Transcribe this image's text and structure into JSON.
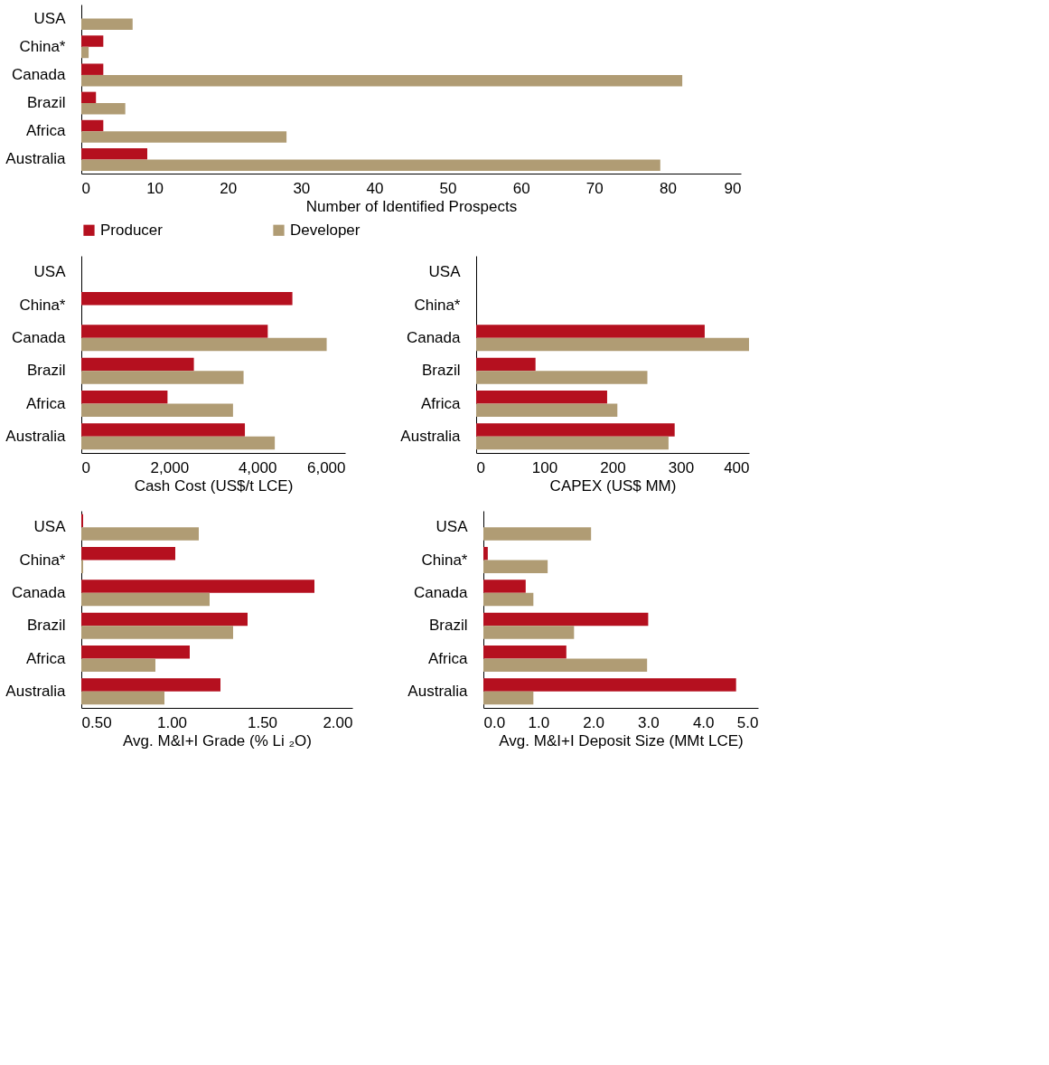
{
  "chart_data": [
    {
      "type": "bar",
      "orientation": "horizontal",
      "xlabel": "Number of Identified Prospects",
      "categories": [
        "USA",
        "China*",
        "Canada",
        "Brazil",
        "Africa",
        "Australia"
      ],
      "xlim": [
        0,
        90
      ],
      "xticks": [
        0,
        10,
        20,
        30,
        40,
        50,
        60,
        70,
        80,
        90
      ],
      "grid": false,
      "legend": "bottom",
      "series": [
        {
          "name": "Producer",
          "color": "#b5101f",
          "values": [
            null,
            3,
            3,
            2,
            3,
            9
          ]
        },
        {
          "name": "Developer",
          "color": "#b09c74",
          "values": [
            7,
            1,
            82,
            6,
            28,
            79
          ]
        }
      ]
    },
    {
      "type": "bar",
      "orientation": "horizontal",
      "xlabel": "Cash Cost (US$/t LCE)",
      "categories": [
        "USA",
        "China*",
        "Canada",
        "Brazil",
        "Africa",
        "Australia"
      ],
      "xlim": [
        0,
        6000
      ],
      "xticks": [
        0,
        {
          "value": 2000,
          "label": "2,000"
        },
        {
          "value": 4000,
          "label": "4,000"
        },
        {
          "value": 6000,
          "label": "6,000"
        }
      ],
      "grid": false,
      "series": [
        {
          "color": "#b5101f",
          "values": [
            null,
            4800,
            4240,
            2560,
            1960,
            3720
          ]
        },
        {
          "color": "#b09c74",
          "values": [
            null,
            null,
            5580,
            3690,
            3450,
            4400
          ]
        }
      ]
    },
    {
      "type": "bar",
      "orientation": "horizontal",
      "xlabel": "CAPEX (US$ MM)",
      "categories": [
        "USA",
        "China*",
        "Canada",
        "Brazil",
        "Africa",
        "Australia"
      ],
      "xlim": [
        0,
        400
      ],
      "xticks": [
        0,
        100,
        200,
        300,
        400
      ],
      "grid": false,
      "series": [
        {
          "color": "#b5101f",
          "values": [
            null,
            null,
            335,
            87,
            192,
            291
          ]
        },
        {
          "color": "#b09c74",
          "values": [
            null,
            null,
            400,
            251,
            207,
            282
          ]
        }
      ]
    },
    {
      "type": "bar",
      "orientation": "horizontal",
      "xlabel": "Avg. M&I+I Grade (% Li ₂O)",
      "categories": [
        "USA",
        "China*",
        "Canada",
        "Brazil",
        "Africa",
        "Australia"
      ],
      "xlim": [
        0.5,
        2.0
      ],
      "xticks": [
        {
          "value": 0.5,
          "label": "0.50"
        },
        {
          "value": 1.0,
          "label": "1.00"
        },
        {
          "value": 1.5,
          "label": "1.50"
        },
        {
          "value": 2.0,
          "label": "2.00"
        }
      ],
      "grid": false,
      "series": [
        {
          "color": "#b5101f",
          "values": [
            0.51,
            1.02,
            1.79,
            1.42,
            1.1,
            1.27
          ]
        },
        {
          "color": "#b09c74",
          "values": [
            1.15,
            0.51,
            1.21,
            1.34,
            0.91,
            0.96
          ]
        }
      ]
    },
    {
      "type": "bar",
      "orientation": "horizontal",
      "xlabel": "Avg. M&I+I Deposit Size (MMt LCE)",
      "categories": [
        "USA",
        "China*",
        "Canada",
        "Brazil",
        "Africa",
        "Australia"
      ],
      "xlim": [
        0,
        5
      ],
      "xticks": [
        {
          "value": 0,
          "label": "0.0"
        },
        {
          "value": 1,
          "label": "1.0"
        },
        {
          "value": 2,
          "label": "2.0"
        },
        {
          "value": 3,
          "label": "3.0"
        },
        {
          "value": 4,
          "label": "4.0"
        },
        {
          "value": 5,
          "label": "5.0"
        }
      ],
      "grid": false,
      "series": [
        {
          "color": "#b5101f",
          "values": [
            null,
            0.08,
            0.77,
            3.0,
            1.51,
            4.6
          ]
        },
        {
          "color": "#b09c74",
          "values": [
            1.96,
            1.17,
            0.91,
            1.65,
            2.98,
            0.91
          ]
        }
      ]
    }
  ]
}
